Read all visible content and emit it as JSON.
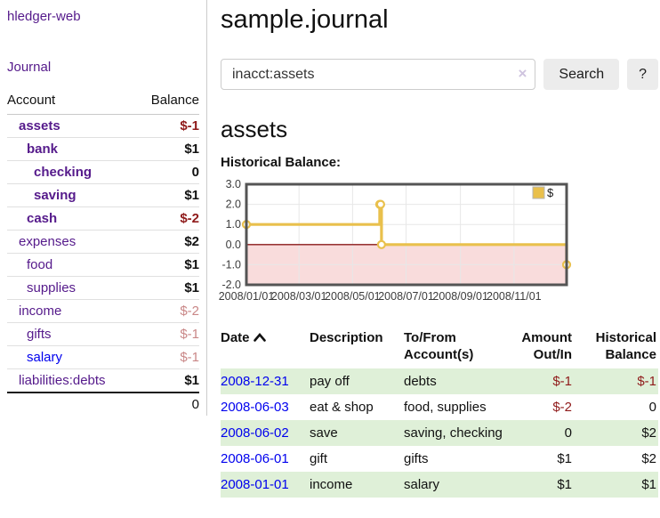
{
  "app_title": "hledger-web",
  "sidebar": {
    "journal_link": "Journal",
    "accounts_table": {
      "account_header": "Account",
      "balance_header": "Balance",
      "rows": [
        {
          "name": "assets",
          "balance": "$-1",
          "depth": 1,
          "matched": true,
          "value_style": "neg",
          "link_style": "purple"
        },
        {
          "name": "bank",
          "balance": "$1",
          "depth": 2,
          "matched": true,
          "value_style": "pos",
          "link_style": "purple"
        },
        {
          "name": "checking",
          "balance": "0",
          "depth": 3,
          "matched": true,
          "value_style": "pos",
          "link_style": "purple"
        },
        {
          "name": "saving",
          "balance": "$1",
          "depth": 3,
          "matched": true,
          "value_style": "pos",
          "link_style": "purple"
        },
        {
          "name": "cash",
          "balance": "$-2",
          "depth": 2,
          "matched": true,
          "value_style": "neg",
          "link_style": "purple"
        },
        {
          "name": "expenses",
          "balance": "$2",
          "depth": 1,
          "matched": false,
          "value_style": "pos",
          "link_style": "purple"
        },
        {
          "name": "food",
          "balance": "$1",
          "depth": 2,
          "matched": false,
          "value_style": "pos",
          "link_style": "purple"
        },
        {
          "name": "supplies",
          "balance": "$1",
          "depth": 2,
          "matched": false,
          "value_style": "pos",
          "link_style": "purple"
        },
        {
          "name": "income",
          "balance": "$-2",
          "depth": 1,
          "matched": false,
          "value_style": "neg-dim",
          "link_style": "purple"
        },
        {
          "name": "gifts",
          "balance": "$-1",
          "depth": 2,
          "matched": false,
          "value_style": "neg-dim",
          "link_style": "purple"
        },
        {
          "name": "salary",
          "balance": "$-1",
          "depth": 2,
          "matched": false,
          "value_style": "neg-dim",
          "link_style": "blue"
        },
        {
          "name": "liabilities:debts",
          "balance": "$1",
          "depth": 1,
          "matched": false,
          "value_style": "pos",
          "link_style": "purple"
        }
      ],
      "total": "0"
    }
  },
  "main": {
    "title": "sample.journal",
    "search": {
      "value": "inacct:assets",
      "clear_icon": "×",
      "search_button": "Search",
      "help_button": "?"
    },
    "account_title": "assets",
    "chart_label": "Historical Balance:"
  },
  "chart_data": {
    "type": "line",
    "step": true,
    "title": "Historical Balance",
    "series": [
      {
        "name": "$",
        "color": "#e9c04c",
        "points": [
          {
            "date": "2008-01-01",
            "value": 1
          },
          {
            "date": "2008-06-01",
            "value": 2
          },
          {
            "date": "2008-06-02",
            "value": 2
          },
          {
            "date": "2008-06-03",
            "value": 0
          },
          {
            "date": "2008-12-31",
            "value": -1
          }
        ]
      }
    ],
    "x_range": [
      "2008-01-01",
      "2008-12-31"
    ],
    "x_ticks": [
      "2008/01/01",
      "2008/03/01",
      "2008/05/01",
      "2008/07/01",
      "2008/09/01",
      "2008/11/01"
    ],
    "y_ticks": [
      3.0,
      2.0,
      1.0,
      0.0,
      -1.0,
      -2.0
    ],
    "ylim": [
      -2,
      3
    ],
    "grid": true,
    "legend": {
      "label": "$",
      "position": "top-right"
    },
    "negative_region_color": "#f9dcdc",
    "zero_line_color": "#8b1a1a",
    "border_color": "#545454",
    "grid_color": "#e7e7e7"
  },
  "register": {
    "headers": [
      {
        "label": "Date",
        "sorted": "ascending"
      },
      {
        "label": "Description"
      },
      {
        "label": "To/From Account(s)"
      },
      {
        "label": "Amount Out/In",
        "align": "right"
      },
      {
        "label": "Historical Balance",
        "align": "right"
      }
    ],
    "rows": [
      {
        "date": "2008-12-31",
        "description": "pay off",
        "accounts": "debts",
        "amount": "$-1",
        "balance": "$-1"
      },
      {
        "date": "2008-06-03",
        "description": "eat & shop",
        "accounts": "food, supplies",
        "amount": "$-2",
        "balance": "0"
      },
      {
        "date": "2008-06-02",
        "description": "save",
        "accounts": "saving, checking",
        "amount": "0",
        "balance": "$2"
      },
      {
        "date": "2008-06-01",
        "description": "gift",
        "accounts": "gifts",
        "amount": "$1",
        "balance": "$2"
      },
      {
        "date": "2008-01-01",
        "description": "income",
        "accounts": "salary",
        "amount": "$1",
        "balance": "$1"
      }
    ]
  }
}
